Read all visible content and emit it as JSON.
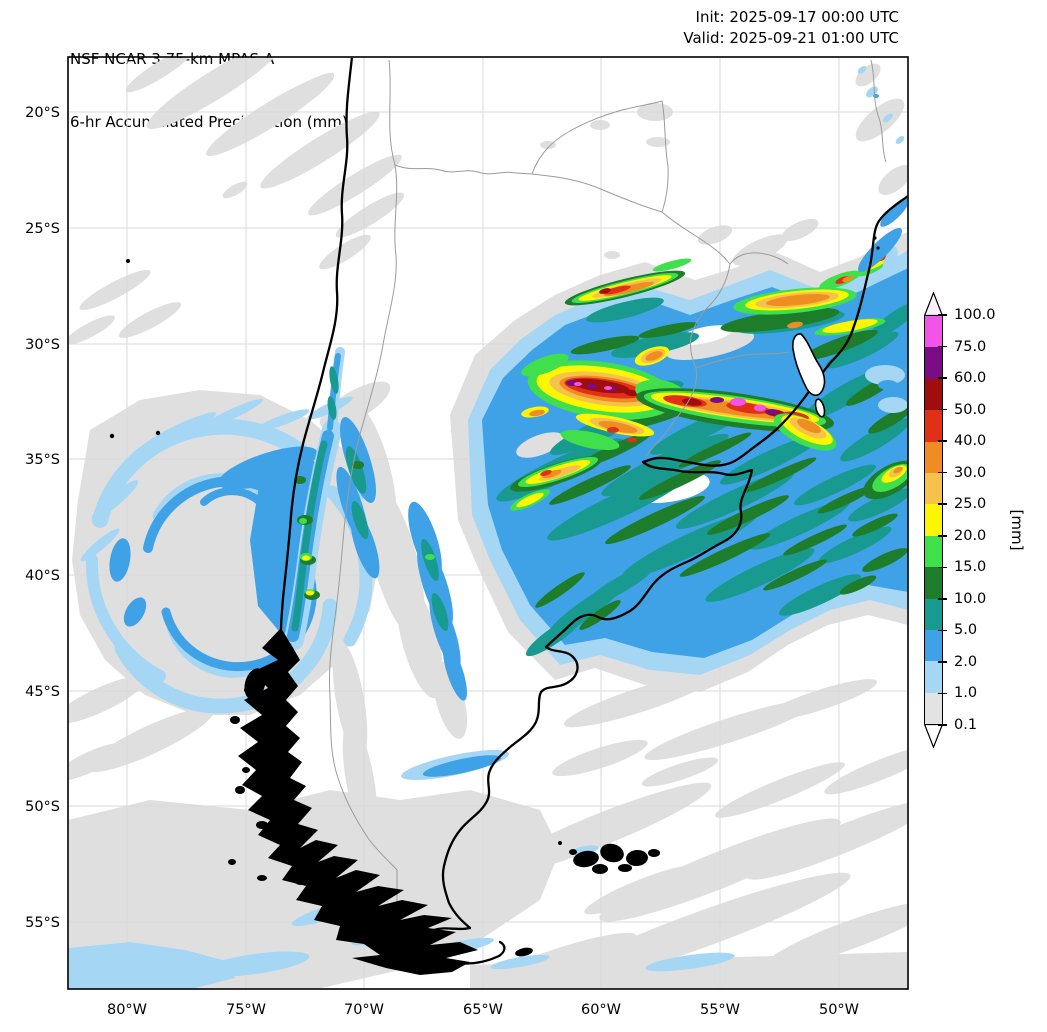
{
  "header": {
    "title_line1": "NSF NCAR 3.75-km MPAS-A",
    "title_line2": "6-hr Accumulated Precipitation (mm)",
    "init_line": "Init: 2025-09-17 00:00 UTC",
    "valid_line": "Valid: 2025-09-21 01:00 UTC"
  },
  "axes": {
    "lon_ticks": [
      "80°W",
      "75°W",
      "70°W",
      "65°W",
      "60°W",
      "55°W",
      "50°W"
    ],
    "lat_ticks": [
      "20°S",
      "25°S",
      "30°S",
      "35°S",
      "40°S",
      "45°S",
      "50°S",
      "55°S"
    ]
  },
  "colorbar": {
    "unit_label": "[mm]",
    "tick_labels": [
      "100.0",
      "75.0",
      "60.0",
      "50.0",
      "40.0",
      "30.0",
      "25.0",
      "20.0",
      "15.0",
      "10.0",
      "5.0",
      "2.0",
      "1.0",
      "0.1"
    ],
    "segments_top_to_bottom": [
      {
        "range": "75.0-100.0",
        "color": "#f154e6"
      },
      {
        "range": "60.0-75.0",
        "color": "#7a0d85"
      },
      {
        "range": "50.0-60.0",
        "color": "#a00d0d"
      },
      {
        "range": "40.0-50.0",
        "color": "#e03118"
      },
      {
        "range": "30.0-40.0",
        "color": "#f08d22"
      },
      {
        "range": "25.0-30.0",
        "color": "#f6c24e"
      },
      {
        "range": "20.0-25.0",
        "color": "#fdf602"
      },
      {
        "range": "15.0-20.0",
        "color": "#3fe04c"
      },
      {
        "range": "10.0-15.0",
        "color": "#1d7d2b"
      },
      {
        "range": "5.0-10.0",
        "color": "#189a90"
      },
      {
        "range": "2.0-5.0",
        "color": "#3fa2e6"
      },
      {
        "range": "1.0-2.0",
        "color": "#a5d7f5"
      },
      {
        "range": "0.1-1.0",
        "color": "#e3e3e3"
      }
    ],
    "over_arrow_color": "#fdf0fc",
    "under_arrow_color": "#ffffff"
  },
  "palette": {
    "gray": "#dfdfdf",
    "lblue": "#a5d7f5",
    "blue": "#3fa2e6",
    "teal": "#189a90",
    "dgreen": "#1d7d2b",
    "green": "#3fe04c",
    "yellow": "#fdf602",
    "amber": "#f6c24e",
    "orange": "#f08d22",
    "red": "#e03118",
    "dred": "#a00d0d",
    "purple": "#7a0d85",
    "magenta": "#f154e6",
    "grid_line": "#dadada",
    "border_line": "#9b9b9b",
    "coast_line": "#000000"
  }
}
